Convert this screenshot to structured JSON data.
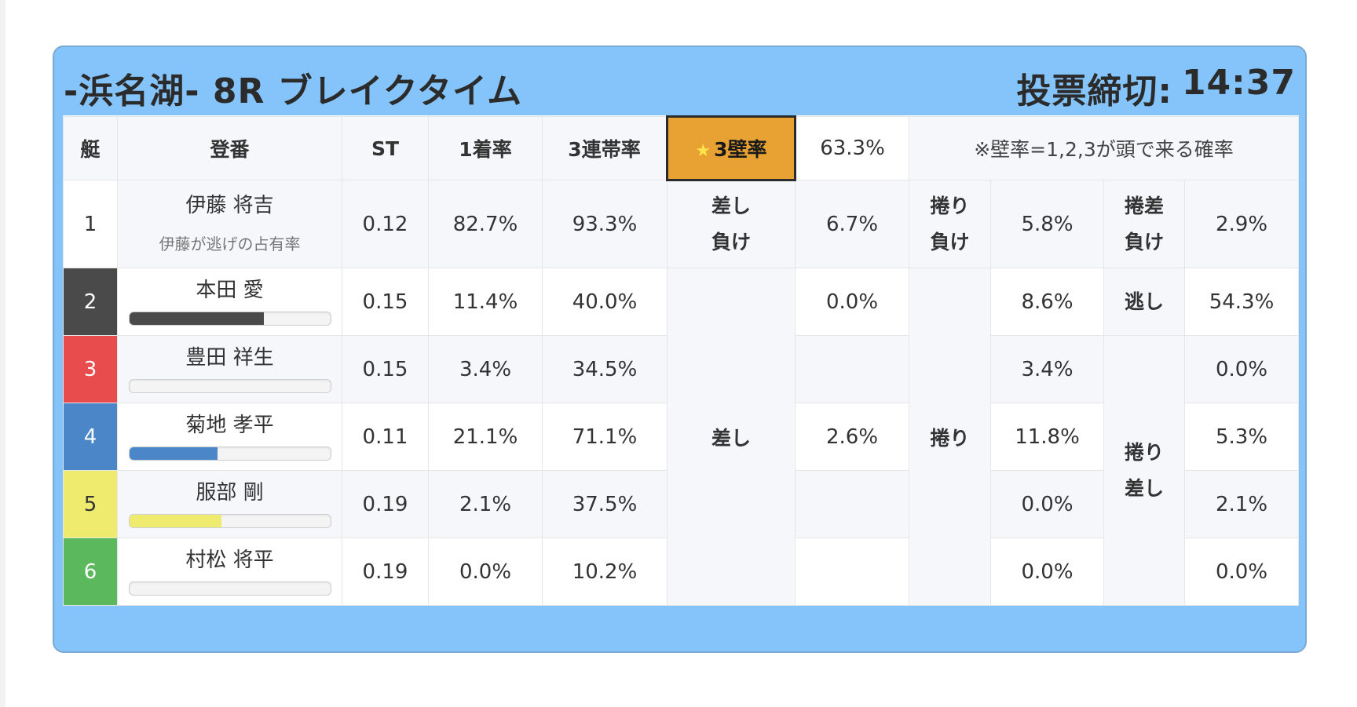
{
  "header": {
    "title": "-浜名湖- 8R ブレイクタイム",
    "deadline_label": "投票締切:",
    "deadline_time": "14:37"
  },
  "columns": {
    "lane": "艇",
    "racer": "登番",
    "st": "ST",
    "win_rate": "1着率",
    "top3_rate": "3連帯率",
    "wall_rate_label": "3壁率",
    "wall_rate_value": "63.3%",
    "wall_note": "※壁率=1,2,3が頭で来る確率"
  },
  "star_icon": "★",
  "lane_colors": [
    "#ffffff",
    "#4a4a4a",
    "#e84c4c",
    "#4a86c8",
    "#eeeb6e",
    "#5cb85c"
  ],
  "lane_text_colors": [
    "#333333",
    "#ffffff",
    "#ffffff",
    "#ffffff",
    "#333333",
    "#ffffff"
  ],
  "rows": [
    {
      "lane": "1",
      "name": "伊藤 将吉",
      "sub": "伊藤が逃げの占有率",
      "st": "0.12",
      "win": "82.7%",
      "top3": "93.3%",
      "c1": "6.7%",
      "c2": "5.8%",
      "c3": "2.9%"
    },
    {
      "lane": "2",
      "name": "本田 愛",
      "st": "0.15",
      "win": "11.4%",
      "top3": "40.0%",
      "c1": "0.0%",
      "c2": "8.6%",
      "c3": "54.3%",
      "bar": 0.67,
      "bar_color": "#4a4a4a"
    },
    {
      "lane": "3",
      "name": "豊田 祥生",
      "st": "0.15",
      "win": "3.4%",
      "top3": "34.5%",
      "c1": "",
      "c2": "3.4%",
      "c3": "0.0%",
      "bar": 0.0,
      "bar_color": "#e84c4c"
    },
    {
      "lane": "4",
      "name": "菊地 孝平",
      "st": "0.11",
      "win": "21.1%",
      "top3": "71.1%",
      "c1": "2.6%",
      "c2": "11.8%",
      "c3": "5.3%",
      "bar": 0.44,
      "bar_color": "#4a86c8"
    },
    {
      "lane": "5",
      "name": "服部 剛",
      "st": "0.19",
      "win": "2.1%",
      "top3": "37.5%",
      "c1": "",
      "c2": "0.0%",
      "c3": "2.1%",
      "bar": 0.46,
      "bar_color": "#eeeb6e"
    },
    {
      "lane": "6",
      "name": "村松 将平",
      "st": "0.19",
      "win": "0.0%",
      "top3": "10.2%",
      "c1": "",
      "c2": "0.0%",
      "c3": "0.0%",
      "bar": 0.0,
      "bar_color": "#5cb85c"
    }
  ],
  "labels": {
    "sashi_make_1": "差し",
    "sashi_make_2": "負け",
    "makuri_make_1": "捲り",
    "makuri_make_2": "負け",
    "makurisashi_make_1": "捲差",
    "makurisashi_make_2": "負け",
    "nige": "逃し",
    "sashi": "差し",
    "makuri": "捲り",
    "makuri_sashi_1": "捲り",
    "makuri_sashi_2": "差し"
  }
}
